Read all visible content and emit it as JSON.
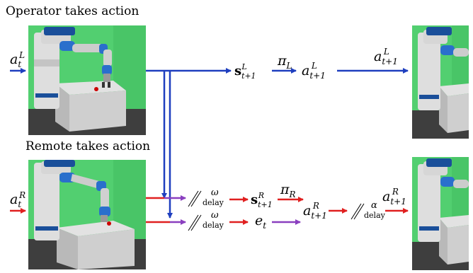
{
  "captions": {
    "operator": "Operator takes action",
    "remote": "Remote takes action"
  },
  "math": {
    "a": "a",
    "t": "t",
    "t1": "t+1",
    "L": "L",
    "R": "R",
    "s": "s",
    "pi": "π",
    "e": "e",
    "omega": "ω",
    "alpha": "α",
    "delay": "delay"
  },
  "colors": {
    "operator_arrow": "#1f3fbf",
    "remote_arrow": "#e02020",
    "delay_arrow": "#8a3fbf",
    "background": "#4fcf6f"
  }
}
